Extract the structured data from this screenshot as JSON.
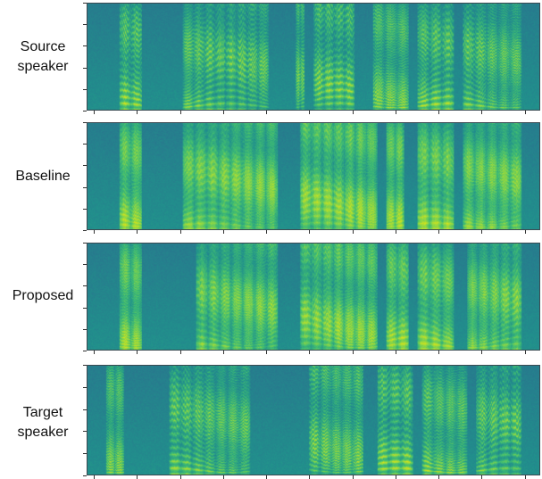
{
  "rows": [
    {
      "label_line1": "Source",
      "label_line2": "speaker"
    },
    {
      "label_line1": "Baseline",
      "label_line2": ""
    },
    {
      "label_line1": "Proposed",
      "label_line2": ""
    },
    {
      "label_line1": "Target",
      "label_line2": "speaker"
    }
  ],
  "colormap": [
    "#2c6a8e",
    "#21918c",
    "#3fbc73",
    "#8fd744",
    "#d5e21a"
  ]
}
